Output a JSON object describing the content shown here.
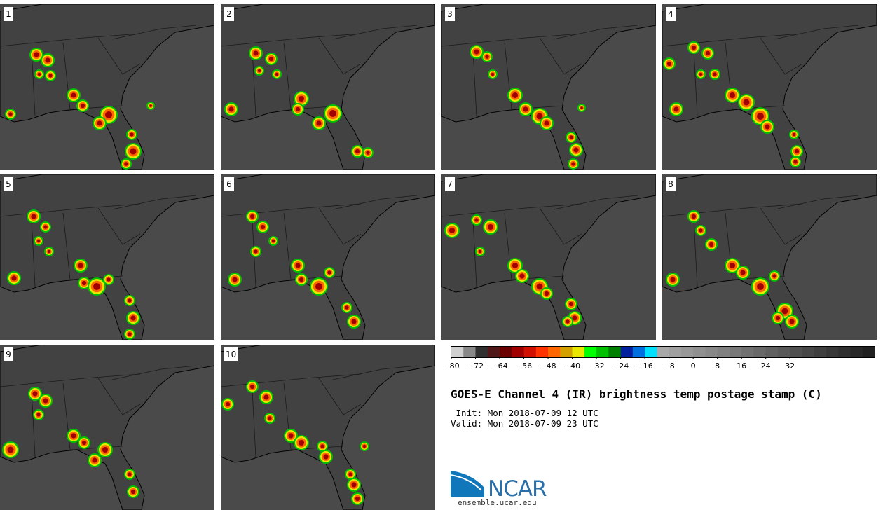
{
  "panels": [
    {
      "label": "1"
    },
    {
      "label": "2"
    },
    {
      "label": "3"
    },
    {
      "label": "4"
    },
    {
      "label": "5"
    },
    {
      "label": "6"
    },
    {
      "label": "7"
    },
    {
      "label": "8"
    },
    {
      "label": "9"
    },
    {
      "label": "10"
    }
  ],
  "colorbar": {
    "tick_labels": [
      "−80",
      "−72",
      "−64",
      "−56",
      "−48",
      "−40",
      "−32",
      "−24",
      "−16",
      "−8",
      "0",
      "8",
      "16",
      "24",
      "32"
    ],
    "colors": [
      "#d0d0d0",
      "#888888",
      "#303030",
      "#501818",
      "#6a0000",
      "#a00000",
      "#d01000",
      "#ff3300",
      "#ff6600",
      "#d4a000",
      "#e8e800",
      "#00ff00",
      "#00c000",
      "#008000",
      "#0020a0",
      "#0070e0",
      "#00e0ff",
      "#a8a8a8",
      "#a0a0a0",
      "#989898",
      "#909090",
      "#888888",
      "#808080",
      "#787878",
      "#707070",
      "#686868",
      "#606060",
      "#585858",
      "#505050",
      "#484848",
      "#404040",
      "#383838",
      "#303030",
      "#282828",
      "#202020"
    ]
  },
  "title": "GOES-E Channel 4 (IR) brightness temp postage stamp (C)",
  "init": " Init: Mon 2018-07-09 12 UTC",
  "valid": "Valid: Mon 2018-07-09 23 UTC",
  "logo": {
    "name": "NCAR",
    "url": "ensemble.ucar.edu"
  }
}
